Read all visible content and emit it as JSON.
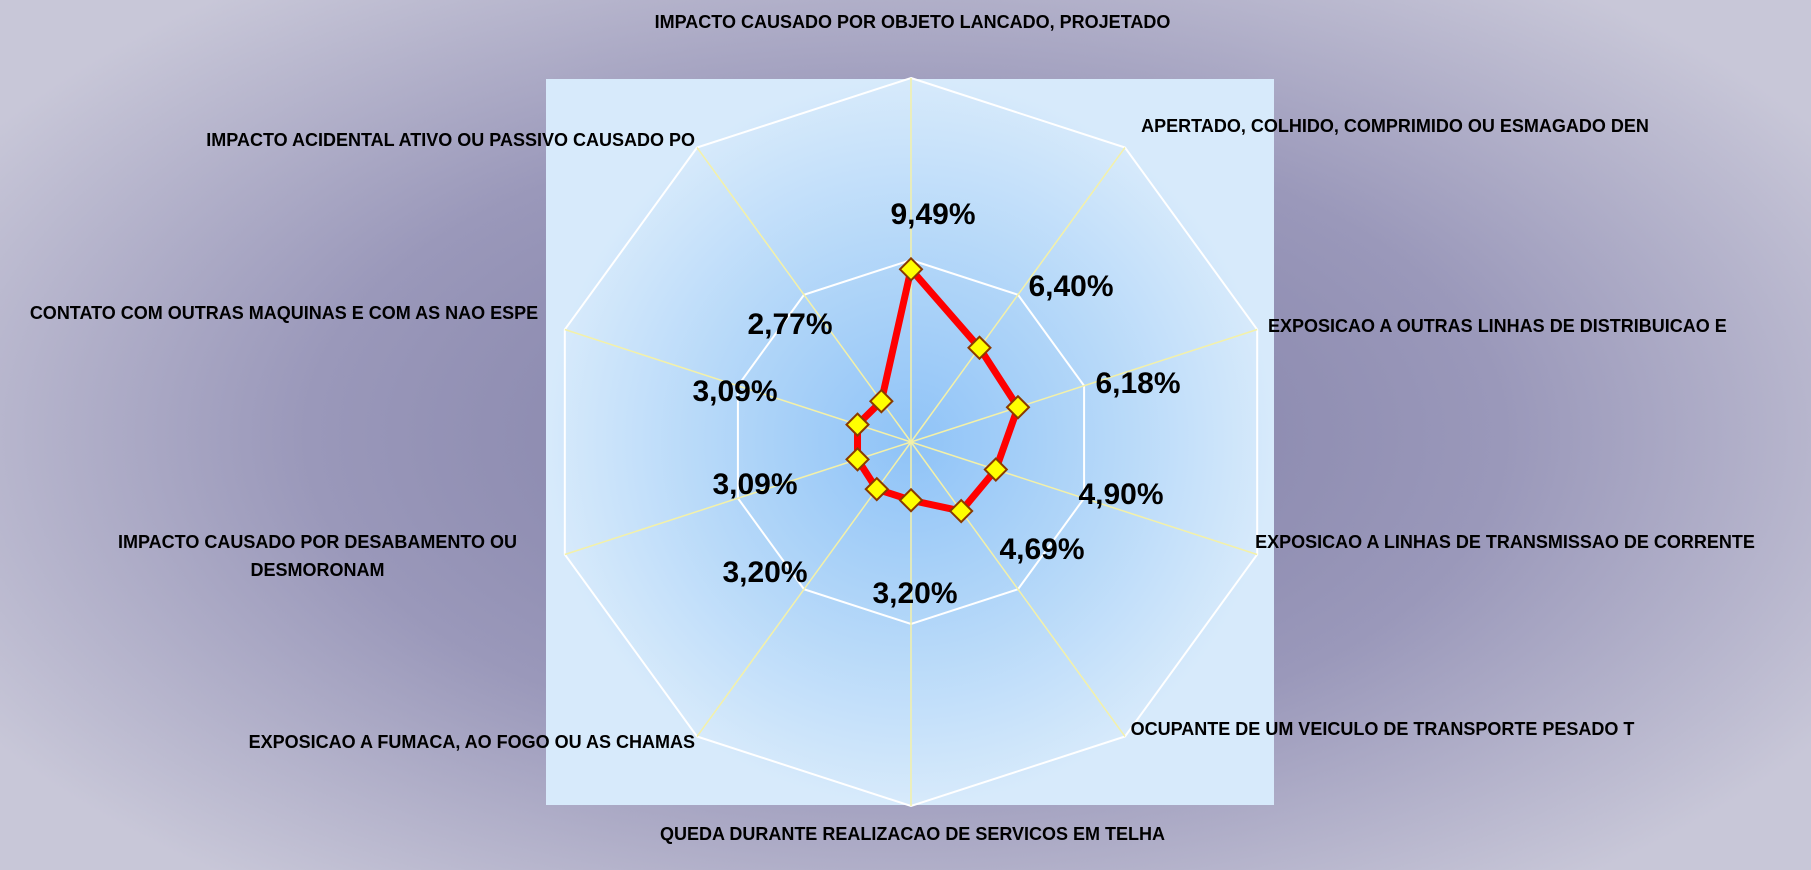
{
  "chart_data": {
    "type": "radar",
    "categories": [
      "IMPACTO CAUSADO POR OBJETO LANCADO, PROJETADO",
      "APERTADO, COLHIDO, COMPRIMIDO OU ESMAGADO DEN",
      "EXPOSICAO A OUTRAS LINHAS DE DISTRIBUICAO E",
      "EXPOSICAO A LINHAS DE TRANSMISSAO DE CORRENTE",
      "OCUPANTE DE UM VEICULO DE TRANSPORTE PESADO T",
      "QUEDA DURANTE REALIZACAO DE SERVICOS EM TELHA",
      "EXPOSICAO A FUMACA, AO FOGO OU AS CHAMAS",
      "IMPACTO CAUSADO POR DESABAMENTO OU DESMORONAM",
      "CONTATO COM OUTRAS MAQUINAS E COM AS NAO ESPE",
      "IMPACTO ACIDENTAL ATIVO OU PASSIVO CAUSADO PO"
    ],
    "values": [
      9.49,
      6.4,
      6.18,
      4.9,
      4.69,
      3.2,
      3.2,
      3.09,
      3.09,
      2.77
    ],
    "value_labels": [
      "9,49%",
      "6,40%",
      "6,18%",
      "4,90%",
      "4,69%",
      "3,20%",
      "3,20%",
      "3,09%",
      "3,09%",
      "2,77%"
    ],
    "color": "#ff0000",
    "marker_color": "#ffff00",
    "ylim": [
      0,
      20
    ],
    "yticks": [
      0,
      10,
      20
    ],
    "grid": true
  }
}
